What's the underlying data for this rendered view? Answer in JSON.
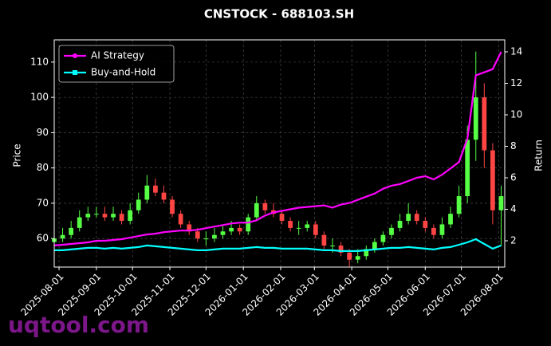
{
  "chart_data": {
    "type": "candlestick",
    "title": "CNSTOCK - 688103.SH",
    "ylabel": "Price",
    "y2label": "Return",
    "watermark": "uqtool.com",
    "x": [
      "2025-07-28",
      "2025-08-04",
      "2025-08-11",
      "2025-08-18",
      "2025-08-25",
      "2025-09-01",
      "2025-09-08",
      "2025-09-15",
      "2025-09-22",
      "2025-09-29",
      "2025-10-06",
      "2025-10-13",
      "2025-10-20",
      "2025-10-27",
      "2025-11-03",
      "2025-11-10",
      "2025-11-17",
      "2025-11-24",
      "2025-12-01",
      "2025-12-08",
      "2025-12-15",
      "2025-12-22",
      "2025-12-29",
      "2026-01-05",
      "2026-01-12",
      "2026-01-19",
      "2026-01-26",
      "2026-02-02",
      "2026-02-09",
      "2026-02-16",
      "2026-02-23",
      "2026-03-02",
      "2026-03-09",
      "2026-03-16",
      "2026-03-23",
      "2026-03-30",
      "2026-04-06",
      "2026-04-13",
      "2026-04-20",
      "2026-04-27",
      "2026-05-04",
      "2026-05-11",
      "2026-05-18",
      "2026-05-25",
      "2026-06-01",
      "2026-06-08",
      "2026-06-15",
      "2026-06-22",
      "2026-06-29",
      "2026-07-06",
      "2026-07-13",
      "2026-07-20",
      "2026-07-27",
      "2026-08-03"
    ],
    "open": [
      59,
      60,
      61,
      63,
      66,
      67,
      67,
      66,
      67,
      65,
      68,
      71,
      75,
      73,
      71,
      67,
      64,
      62,
      60,
      60,
      61,
      62,
      63,
      62,
      66,
      70,
      68,
      67,
      65,
      63,
      63,
      64,
      61,
      58,
      58,
      56,
      54,
      55,
      57,
      59,
      61,
      63,
      65,
      67,
      65,
      63,
      61,
      64,
      67,
      72,
      88,
      100,
      85,
      68
    ],
    "high": [
      62,
      63,
      65,
      68,
      69,
      69,
      69,
      69,
      68,
      70,
      73,
      78,
      77,
      75,
      72,
      68,
      65,
      63,
      62,
      63,
      64,
      65,
      64,
      67,
      72,
      71,
      70,
      68,
      66,
      65,
      65,
      65,
      62,
      60,
      59,
      57,
      57,
      58,
      60,
      62,
      64,
      67,
      70,
      68,
      66,
      64,
      66,
      69,
      75,
      92,
      113,
      104,
      87,
      75
    ],
    "low": [
      57,
      59,
      60,
      62,
      65,
      66,
      65,
      65,
      64,
      64,
      67,
      70,
      72,
      70,
      66,
      63,
      61,
      59,
      58,
      59,
      60,
      61,
      61,
      61,
      65,
      67,
      66,
      64,
      62,
      61,
      62,
      60,
      57,
      56,
      55,
      52,
      53,
      54,
      56,
      58,
      60,
      62,
      64,
      64,
      62,
      60,
      60,
      63,
      66,
      70,
      82,
      80,
      64,
      58
    ],
    "close": [
      60,
      61,
      63,
      66,
      67,
      67,
      66,
      67,
      65,
      68,
      71,
      75,
      73,
      71,
      67,
      64,
      62,
      60,
      60,
      61,
      62,
      63,
      62,
      66,
      70,
      68,
      67,
      65,
      63,
      63,
      64,
      61,
      58,
      58,
      56,
      54,
      55,
      57,
      59,
      61,
      63,
      65,
      67,
      65,
      63,
      61,
      64,
      67,
      72,
      88,
      100,
      85,
      68,
      72
    ],
    "up_color": "#55ff44",
    "down_color": "#ff4444",
    "series": [
      {
        "name": "AI Strategy",
        "color": "#ff00ff",
        "axis": "y2",
        "marker": "circle",
        "values": [
          1.7,
          1.75,
          1.8,
          1.85,
          1.9,
          2.0,
          2.0,
          2.05,
          2.1,
          2.2,
          2.3,
          2.4,
          2.45,
          2.55,
          2.6,
          2.65,
          2.65,
          2.7,
          2.8,
          2.9,
          3.0,
          3.1,
          3.15,
          3.15,
          3.3,
          3.6,
          3.8,
          3.9,
          4.0,
          4.1,
          4.15,
          4.2,
          4.25,
          4.1,
          4.3,
          4.4,
          4.6,
          4.8,
          5.0,
          5.3,
          5.5,
          5.6,
          5.8,
          6.0,
          6.1,
          5.9,
          6.2,
          6.6,
          7.0,
          8.5,
          12.5,
          12.7,
          12.9,
          14.0
        ]
      },
      {
        "name": "Buy-and-Hold",
        "color": "#00ffff",
        "axis": "y2",
        "marker": "square",
        "values": [
          1.4,
          1.4,
          1.45,
          1.5,
          1.55,
          1.55,
          1.5,
          1.55,
          1.5,
          1.55,
          1.6,
          1.7,
          1.65,
          1.6,
          1.55,
          1.5,
          1.45,
          1.4,
          1.4,
          1.45,
          1.5,
          1.5,
          1.5,
          1.55,
          1.6,
          1.55,
          1.55,
          1.5,
          1.5,
          1.5,
          1.5,
          1.45,
          1.4,
          1.4,
          1.35,
          1.35,
          1.35,
          1.4,
          1.45,
          1.5,
          1.55,
          1.55,
          1.6,
          1.55,
          1.5,
          1.45,
          1.55,
          1.6,
          1.75,
          1.9,
          2.1,
          1.8,
          1.5,
          1.7
        ]
      }
    ],
    "xlim": [
      "2025-07-28",
      "2026-08-06"
    ],
    "xticks": [
      "2025-08-01",
      "2025-09-01",
      "2025-10-01",
      "2025-11-01",
      "2025-12-01",
      "2026-01-01",
      "2026-02-01",
      "2026-03-01",
      "2026-04-01",
      "2026-05-01",
      "2026-06-01",
      "2026-07-01",
      "2026-08-01"
    ],
    "ylim": [
      51.9,
      116.3
    ],
    "yticks": [
      60,
      70,
      80,
      90,
      100,
      110
    ],
    "y2lim": [
      0.33,
      14.76
    ],
    "y2ticks": [
      2,
      4,
      6,
      8,
      10,
      12,
      14
    ],
    "grid": true,
    "legend": "upper left"
  }
}
